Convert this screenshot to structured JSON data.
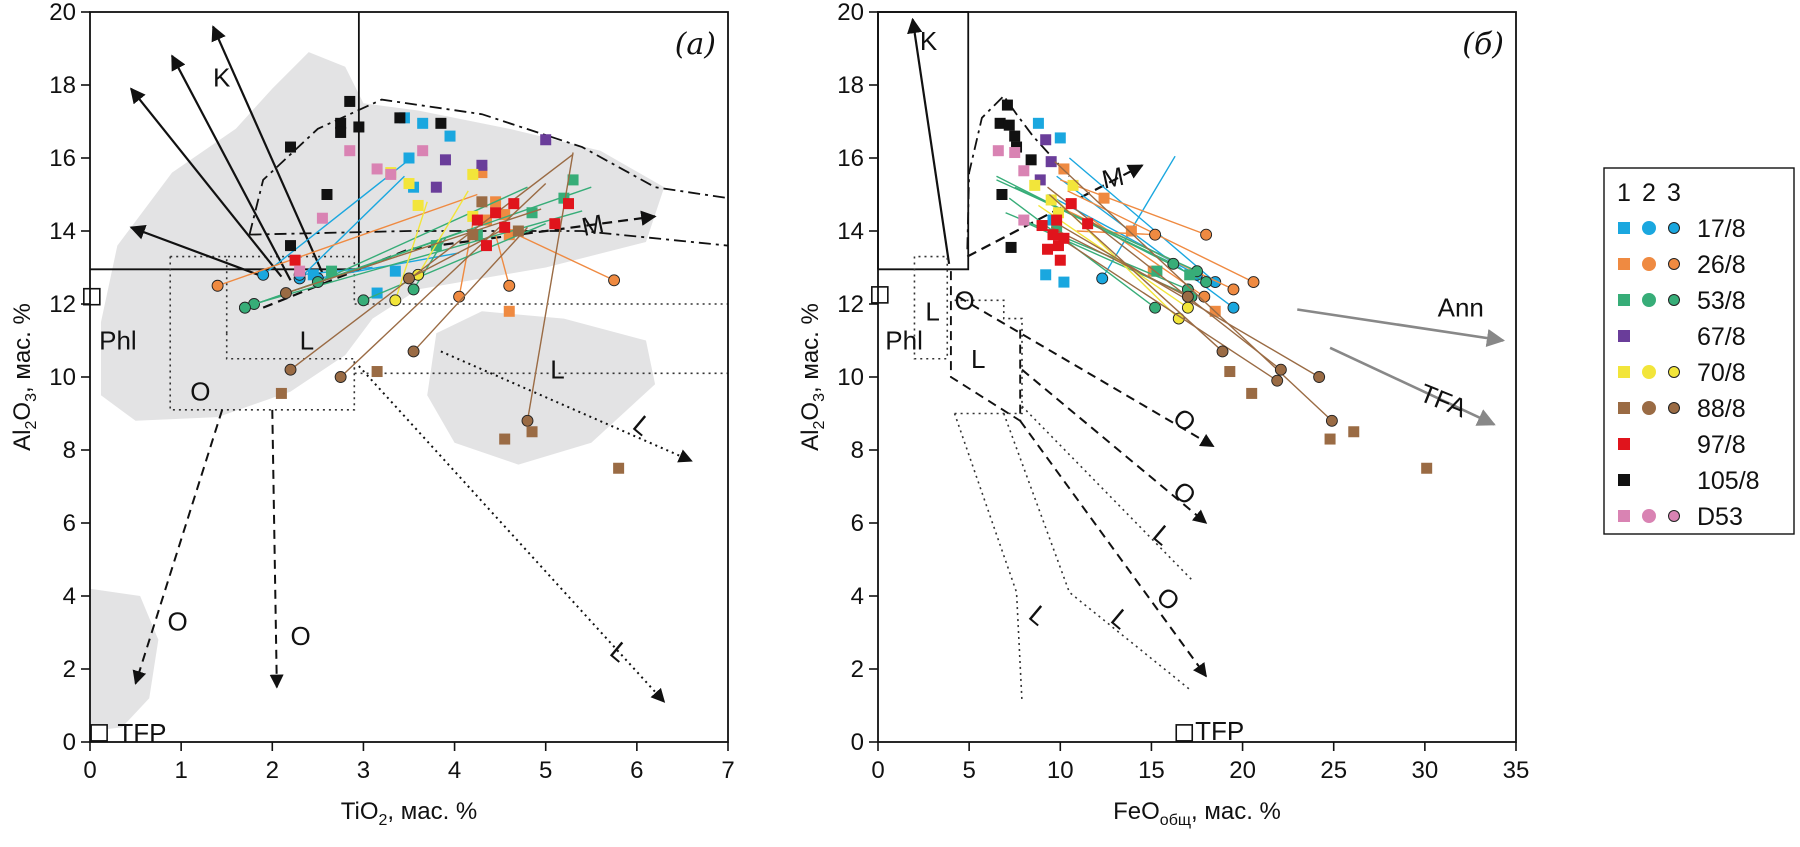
{
  "chart_data": [
    {
      "type": "scatter",
      "panel_tag": "(а)",
      "xlabel": {
        "main": "TiO",
        "sub": "2",
        "rest": ", мас. %"
      },
      "ylabel": {
        "a": "Al",
        "b": "2",
        "c": "O",
        "d": "3",
        "e": ", мас. %"
      },
      "xlim": [
        0,
        7
      ],
      "ylim": [
        0,
        20
      ],
      "xticks": [
        "0",
        "1",
        "2",
        "3",
        "4",
        "5",
        "6",
        "7"
      ],
      "yticks": [
        "0",
        "2",
        "4",
        "6",
        "8",
        "10",
        "12",
        "14",
        "16",
        "18",
        "20"
      ],
      "field_labels": [
        {
          "text": "K",
          "x": 1.35,
          "y": 18.2
        },
        {
          "text": "Phl",
          "x": 0.1,
          "y": 11.0
        },
        {
          "text": "L",
          "x": 2.3,
          "y": 11.0
        },
        {
          "text": "O",
          "x": 1.1,
          "y": 9.6
        },
        {
          "text": "L",
          "x": 5.05,
          "y": 10.2
        },
        {
          "text": "M",
          "x": 5.4,
          "y": 14.1
        },
        {
          "text": "L",
          "x": 6.0,
          "y": 8.8
        },
        {
          "text": "O",
          "x": 0.85,
          "y": 3.3
        },
        {
          "text": "O",
          "x": 2.2,
          "y": 2.9
        },
        {
          "text": "L",
          "x": 5.75,
          "y": 2.6
        },
        {
          "text": "TFP",
          "x": 0.3,
          "y": 0.25
        }
      ],
      "end_members": [
        {
          "name": "Phl",
          "x": 0.02,
          "y": 12.2
        },
        {
          "name": "TFP",
          "x": 0.1,
          "y": 0.25
        }
      ],
      "series": [
        {
          "name": "17/8",
          "squares": [
            [
              3.45,
              17.1
            ],
            [
              3.65,
              16.95
            ],
            [
              3.95,
              16.6
            ],
            [
              3.5,
              16.0
            ],
            [
              3.55,
              15.2
            ],
            [
              3.35,
              12.9
            ],
            [
              3.15,
              12.3
            ],
            [
              2.45,
              12.8
            ]
          ],
          "arrows": [
            [
              3.55,
              16.05,
              1.9,
              12.8
            ],
            [
              3.45,
              15.5,
              2.3,
              12.7
            ],
            [
              3.1,
              13.0,
              2.3,
              12.8
            ],
            [
              4.05,
              13.4,
              2.5,
              12.7
            ]
          ]
        },
        {
          "name": "26/8",
          "squares": [
            [
              4.3,
              15.6
            ],
            [
              4.45,
              14.8
            ],
            [
              4.35,
              14.3
            ],
            [
              4.6,
              13.9
            ],
            [
              4.55,
              14.45
            ],
            [
              4.6,
              11.8
            ]
          ],
          "arrows": [
            [
              4.25,
              15.0,
              1.4,
              12.5
            ],
            [
              4.6,
              14.0,
              5.75,
              12.65
            ],
            [
              4.45,
              13.9,
              4.6,
              12.5
            ],
            [
              4.2,
              14.2,
              4.05,
              12.2
            ]
          ]
        },
        {
          "name": "53/8",
          "squares": [
            [
              5.3,
              15.4
            ],
            [
              5.2,
              14.9
            ],
            [
              4.85,
              14.5
            ],
            [
              4.25,
              13.9
            ],
            [
              3.8,
              13.6
            ],
            [
              2.65,
              12.9
            ]
          ],
          "arrows": [
            [
              5.5,
              15.2,
              1.7,
              11.9
            ],
            [
              5.4,
              14.55,
              1.8,
              12.0
            ],
            [
              4.8,
              15.2,
              2.5,
              12.6
            ],
            [
              4.1,
              14.0,
              1.7,
              11.9
            ],
            [
              5.0,
              14.2,
              3.0,
              12.1
            ],
            [
              3.9,
              13.8,
              3.55,
              12.4
            ]
          ]
        },
        {
          "name": "67/8",
          "squares": [
            [
              5.0,
              16.5
            ],
            [
              3.9,
              15.95
            ],
            [
              4.3,
              15.8
            ],
            [
              3.8,
              15.2
            ]
          ],
          "arrows": []
        },
        {
          "name": "70/8",
          "squares": [
            [
              3.6,
              14.7
            ],
            [
              4.2,
              15.55
            ],
            [
              3.3,
              15.6
            ],
            [
              3.5,
              15.3
            ],
            [
              4.2,
              14.4
            ]
          ],
          "arrows": [
            [
              4.15,
              15.1,
              3.6,
              12.8
            ],
            [
              3.7,
              14.8,
              3.35,
              12.1
            ]
          ]
        },
        {
          "name": "88/8",
          "squares": [
            [
              4.85,
              8.5
            ],
            [
              4.55,
              8.3
            ],
            [
              5.8,
              7.5
            ],
            [
              3.15,
              10.15
            ],
            [
              2.1,
              9.55
            ],
            [
              4.3,
              14.8
            ],
            [
              4.7,
              14.0
            ],
            [
              4.2,
              13.9
            ]
          ],
          "arrows": [
            [
              5.3,
              16.1,
              2.2,
              10.2
            ],
            [
              5.0,
              15.3,
              2.75,
              10.0
            ],
            [
              5.3,
              16.15,
              4.8,
              8.8
            ],
            [
              4.5,
              14.0,
              3.5,
              12.7
            ],
            [
              4.8,
              14.1,
              3.55,
              10.7
            ],
            [
              4.95,
              14.6,
              2.15,
              12.3
            ]
          ]
        },
        {
          "name": "97/8",
          "squares": [
            [
              4.45,
              14.5
            ],
            [
              4.55,
              14.1
            ],
            [
              4.65,
              14.75
            ],
            [
              4.35,
              13.6
            ],
            [
              5.25,
              14.75
            ],
            [
              5.1,
              14.2
            ],
            [
              4.25,
              14.3
            ],
            [
              2.25,
              13.2
            ]
          ],
          "arrows": []
        },
        {
          "name": "105/8",
          "squares": [
            [
              2.85,
              17.55
            ],
            [
              2.75,
              16.95
            ],
            [
              3.4,
              17.1
            ],
            [
              2.75,
              16.7
            ],
            [
              3.85,
              16.95
            ],
            [
              2.95,
              16.85
            ],
            [
              2.2,
              16.3
            ],
            [
              2.6,
              15.0
            ],
            [
              2.2,
              13.6
            ]
          ],
          "arrows": []
        },
        {
          "name": "D53",
          "squares": [
            [
              2.85,
              16.2
            ],
            [
              2.55,
              14.35
            ],
            [
              3.15,
              15.7
            ],
            [
              3.3,
              15.55
            ],
            [
              3.65,
              16.2
            ],
            [
              2.3,
              12.9
            ]
          ],
          "arrows": []
        }
      ]
    },
    {
      "type": "scatter",
      "panel_tag": "(б)",
      "xlabel": {
        "main": "FeO",
        "sub": "общ",
        "rest": ", мас. %"
      },
      "ylabel": {
        "a": "Al",
        "b": "2",
        "c": "O",
        "d": "3",
        "e": ", мас. %"
      },
      "xlim": [
        0,
        35
      ],
      "ylim": [
        0,
        20
      ],
      "xticks": [
        "0",
        "5",
        "10",
        "15",
        "20",
        "25",
        "30",
        "35"
      ],
      "yticks": [
        "0",
        "2",
        "4",
        "6",
        "8",
        "10",
        "12",
        "14",
        "16",
        "18",
        "20"
      ],
      "field_labels": [
        {
          "text": "K",
          "x": 2.3,
          "y": 19.2
        },
        {
          "text": "Phl",
          "x": 0.4,
          "y": 11.0
        },
        {
          "text": "L",
          "x": 2.6,
          "y": 11.8
        },
        {
          "text": "O",
          "x": 4.2,
          "y": 12.1
        },
        {
          "text": "L",
          "x": 5.1,
          "y": 10.5
        },
        {
          "text": "M",
          "x": 12.3,
          "y": 15.4
        },
        {
          "text": "Ann",
          "x": 30.7,
          "y": 11.9
        },
        {
          "text": "TFA",
          "x": 29.8,
          "y": 9.6
        },
        {
          "text": "O",
          "x": 16.4,
          "y": 9.0
        },
        {
          "text": "O",
          "x": 16.4,
          "y": 7.0
        },
        {
          "text": "L",
          "x": 15.3,
          "y": 5.8
        },
        {
          "text": "O",
          "x": 15.5,
          "y": 4.1
        },
        {
          "text": "L",
          "x": 13.0,
          "y": 3.5
        },
        {
          "text": "L",
          "x": 8.5,
          "y": 3.6
        },
        {
          "text": "TFP",
          "x": 17.4,
          "y": 0.3
        }
      ],
      "end_members": [
        {
          "name": "Phl",
          "x": 0.1,
          "y": 12.25
        },
        {
          "name": "TFP",
          "x": 16.8,
          "y": 0.25
        }
      ],
      "series": [
        {
          "name": "17/8",
          "squares": [
            [
              8.8,
              16.95
            ],
            [
              10.0,
              16.55
            ],
            [
              9.2,
              12.8
            ],
            [
              10.2,
              12.6
            ],
            [
              9.6,
              14.3
            ]
          ],
          "arrows": [
            [
              10.5,
              16.0,
              18.5,
              12.6
            ],
            [
              9.8,
              15.5,
              19.5,
              11.9
            ],
            [
              16.3,
              16.05,
              12.3,
              12.7
            ],
            [
              9.3,
              15.0,
              17.5,
              12.8
            ]
          ]
        },
        {
          "name": "26/8",
          "squares": [
            [
              10.2,
              15.7
            ],
            [
              12.4,
              14.9
            ],
            [
              13.9,
              14.0
            ],
            [
              15.1,
              12.9
            ],
            [
              18.5,
              11.8
            ]
          ],
          "arrows": [
            [
              10.0,
              15.4,
              18.0,
              13.9
            ],
            [
              10.4,
              15.1,
              20.6,
              12.6
            ],
            [
              10.2,
              14.6,
              19.5,
              12.4
            ],
            [
              11.5,
              14.4,
              17.9,
              12.2
            ],
            [
              10.9,
              14.0,
              15.2,
              13.9
            ]
          ]
        },
        {
          "name": "53/8",
          "squares": [
            [
              15.3,
              12.9
            ],
            [
              17.1,
              12.8
            ],
            [
              9.8,
              14.0
            ]
          ],
          "arrows": [
            [
              6.5,
              15.5,
              18.0,
              12.6
            ],
            [
              6.5,
              15.4,
              17.5,
              12.9
            ],
            [
              7.5,
              15.2,
              16.2,
              13.1
            ],
            [
              7.0,
              14.5,
              17.0,
              12.4
            ],
            [
              7.8,
              14.3,
              17.2,
              12.2
            ],
            [
              7.2,
              14.9,
              15.2,
              11.9
            ]
          ]
        },
        {
          "name": "67/8",
          "squares": [
            [
              9.2,
              16.5
            ],
            [
              9.5,
              15.9
            ],
            [
              8.9,
              15.4
            ]
          ],
          "arrows": []
        },
        {
          "name": "70/8",
          "squares": [
            [
              10.7,
              15.25
            ],
            [
              8.6,
              15.25
            ],
            [
              9.9,
              14.5
            ],
            [
              9.5,
              14.85
            ]
          ],
          "arrows": [
            [
              9.7,
              14.9,
              16.5,
              11.6
            ],
            [
              8.8,
              14.7,
              17.0,
              11.9
            ]
          ]
        },
        {
          "name": "88/8",
          "squares": [
            [
              19.3,
              10.15
            ],
            [
              20.5,
              9.55
            ],
            [
              24.8,
              8.3
            ],
            [
              26.1,
              8.5
            ],
            [
              30.1,
              7.5
            ]
          ],
          "arrows": [
            [
              9.7,
              15.9,
              24.9,
              8.8
            ],
            [
              9.3,
              15.2,
              22.1,
              10.2
            ],
            [
              9.5,
              14.3,
              24.2,
              10.0
            ],
            [
              9.4,
              14.0,
              21.9,
              9.9
            ],
            [
              9.4,
              15.0,
              18.9,
              10.7
            ],
            [
              9.5,
              14.1,
              17.0,
              12.2
            ]
          ]
        },
        {
          "name": "97/8",
          "squares": [
            [
              9.0,
              14.15
            ],
            [
              9.6,
              13.9
            ],
            [
              10.2,
              13.8
            ],
            [
              10.0,
              13.2
            ],
            [
              10.6,
              14.75
            ],
            [
              9.8,
              14.3
            ],
            [
              11.5,
              14.2
            ],
            [
              9.9,
              13.6
            ],
            [
              9.3,
              13.5
            ]
          ],
          "arrows": []
        },
        {
          "name": "105/8",
          "squares": [
            [
              7.1,
              17.45
            ],
            [
              6.7,
              16.95
            ],
            [
              7.5,
              16.6
            ],
            [
              7.2,
              16.9
            ],
            [
              7.6,
              16.3
            ],
            [
              8.4,
              15.95
            ],
            [
              6.8,
              15.0
            ],
            [
              7.3,
              13.55
            ]
          ],
          "arrows": []
        },
        {
          "name": "D53",
          "squares": [
            [
              6.6,
              16.2
            ],
            [
              7.5,
              16.15
            ],
            [
              8.0,
              15.65
            ],
            [
              8.0,
              14.3
            ]
          ],
          "arrows": []
        }
      ]
    }
  ],
  "legend": {
    "header": [
      "1",
      "2",
      "3"
    ],
    "items": [
      {
        "label": "17/8",
        "color": "#1aa7df",
        "marks": [
          true,
          true,
          true
        ]
      },
      {
        "label": "26/8",
        "color": "#ef8a41",
        "marks": [
          true,
          true,
          true
        ]
      },
      {
        "label": "53/8",
        "color": "#37ad78",
        "marks": [
          true,
          true,
          true
        ]
      },
      {
        "label": "67/8",
        "color": "#6a3d9a",
        "marks": [
          true,
          false,
          false
        ]
      },
      {
        "label": "70/8",
        "color": "#f2e53a",
        "marks": [
          true,
          true,
          true
        ]
      },
      {
        "label": "88/8",
        "color": "#9a6b44",
        "marks": [
          true,
          true,
          true
        ]
      },
      {
        "label": "97/8",
        "color": "#e0141c",
        "marks": [
          true,
          false,
          false
        ]
      },
      {
        "label": "105/8",
        "color": "#111111",
        "marks": [
          true,
          false,
          false
        ]
      },
      {
        "label": "D53",
        "color": "#d983b3",
        "marks": [
          true,
          true,
          true
        ]
      }
    ]
  }
}
